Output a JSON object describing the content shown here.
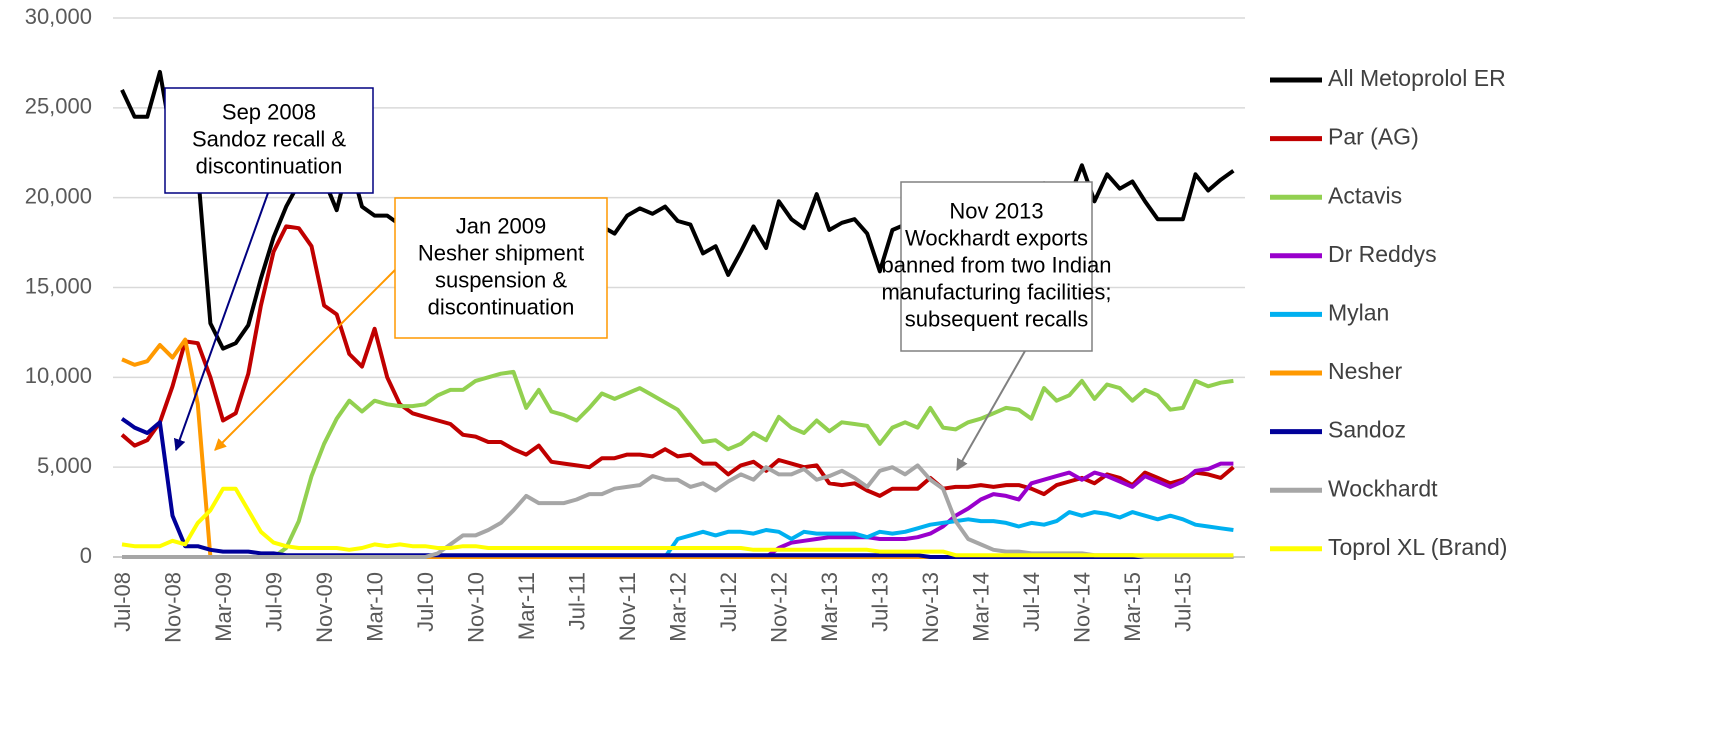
{
  "chart_data": {
    "type": "line",
    "categories": [
      "Jul-08",
      null,
      null,
      null,
      "Nov-08",
      null,
      null,
      null,
      "Mar-09",
      null,
      null,
      null,
      "Jul-09",
      null,
      null,
      null,
      "Nov-09",
      null,
      null,
      null,
      "Mar-10",
      null,
      null,
      null,
      "Jul-10",
      null,
      null,
      null,
      "Nov-10",
      null,
      null,
      null,
      "Mar-11",
      null,
      null,
      null,
      "Jul-11",
      null,
      null,
      null,
      "Nov-11",
      null,
      null,
      null,
      "Mar-12",
      null,
      null,
      null,
      "Jul-12",
      null,
      null,
      null,
      "Nov-12",
      null,
      null,
      null,
      "Mar-13",
      null,
      null,
      null,
      "Jul-13",
      null,
      null,
      null,
      "Nov-13",
      null,
      null,
      null,
      "Mar-14",
      null,
      null,
      null,
      "Jul-14",
      null,
      null,
      null,
      "Nov-14",
      null,
      null,
      null,
      "Mar-15",
      null,
      null,
      null,
      "Jul-15",
      null,
      null,
      null,
      null
    ],
    "ylim": [
      0,
      30000
    ],
    "yticks": [
      0,
      {
        "value": 5000,
        "label": "5,000"
      },
      {
        "value": 10000,
        "label": "10,000"
      },
      {
        "value": 15000,
        "label": "15,000"
      },
      {
        "value": 20000,
        "label": "20,000"
      },
      {
        "value": 25000,
        "label": "25,000"
      },
      {
        "value": 30000,
        "label": "30,000"
      }
    ],
    "grid": true,
    "legend": "right",
    "series": [
      {
        "name": "All Metoprolol ER",
        "color": "#000000",
        "values": [
          26000,
          24500,
          24500,
          27000,
          23000,
          22000,
          21500,
          13000,
          11600,
          11900,
          12900,
          15500,
          17800,
          19500,
          20800,
          21500,
          21000,
          19300,
          22100,
          19500,
          19000,
          19000,
          18500,
          19000,
          19200,
          18800,
          18500,
          19000,
          19300,
          19000,
          18500,
          18800,
          19200,
          18700,
          18500,
          18000,
          18200,
          18800,
          18400,
          18000,
          19000,
          19400,
          19100,
          19500,
          18700,
          18500,
          16900,
          17300,
          15700,
          17000,
          18400,
          17200,
          19800,
          18800,
          18300,
          20200,
          18200,
          18600,
          18800,
          18000,
          15900,
          18200,
          18500,
          18800,
          19000,
          19300,
          19000,
          18700,
          19500,
          19800,
          20000,
          20300,
          20500,
          20800,
          20600,
          20000,
          21800,
          19800,
          21300,
          20500,
          20900,
          19800,
          18800,
          18800,
          18800,
          21300,
          20400,
          21000,
          21500
        ]
      },
      {
        "name": "Par (AG)",
        "color": "#c00000",
        "values": [
          6800,
          6200,
          6500,
          7500,
          9500,
          12000,
          11900,
          10000,
          7600,
          8000,
          10200,
          14000,
          17000,
          18400,
          18300,
          17300,
          14000,
          13500,
          11300,
          10600,
          12700,
          10000,
          8500,
          8000,
          7800,
          7600,
          7400,
          6800,
          6700,
          6400,
          6400,
          6000,
          5700,
          6200,
          5300,
          5200,
          5100,
          5000,
          5500,
          5500,
          5700,
          5700,
          5600,
          6000,
          5600,
          5700,
          5200,
          5200,
          4600,
          5100,
          5300,
          4800,
          5400,
          5200,
          5000,
          5100,
          4100,
          4000,
          4100,
          3700,
          3400,
          3800,
          3800,
          3800,
          4400,
          3800,
          3900,
          3900,
          4000,
          3900,
          4000,
          4000,
          3800,
          3500,
          4000,
          4200,
          4400,
          4100,
          4600,
          4400,
          4000,
          4700,
          4400,
          4100,
          4300,
          4700,
          4600,
          4400,
          5000
        ]
      },
      {
        "name": "Actavis",
        "color": "#92d050",
        "values": [
          0,
          0,
          0,
          0,
          0,
          0,
          0,
          0,
          0,
          0,
          0,
          0,
          0,
          500,
          2000,
          4500,
          6300,
          7700,
          8700,
          8100,
          8700,
          8500,
          8400,
          8400,
          8500,
          9000,
          9300,
          9300,
          9800,
          10000,
          10200,
          10300,
          8300,
          9300,
          8100,
          7900,
          7600,
          8300,
          9100,
          8800,
          9100,
          9400,
          9000,
          8600,
          8200,
          7300,
          6400,
          6500,
          6000,
          6300,
          6900,
          6500,
          7800,
          7200,
          6900,
          7600,
          7000,
          7500,
          7400,
          7300,
          6300,
          7200,
          7500,
          7200,
          8300,
          7200,
          7100,
          7500,
          7700,
          8000,
          8300,
          8200,
          7700,
          9400,
          8700,
          9000,
          9800,
          8800,
          9600,
          9400,
          8700,
          9300,
          9000,
          8200,
          8300,
          9800,
          9500,
          9700,
          9800
        ]
      },
      {
        "name": "Dr Reddys",
        "color": "#9900cc",
        "values": [
          0,
          0,
          0,
          0,
          0,
          0,
          0,
          0,
          0,
          0,
          0,
          0,
          0,
          0,
          0,
          0,
          0,
          0,
          0,
          0,
          0,
          0,
          0,
          0,
          0,
          0,
          0,
          0,
          0,
          0,
          0,
          0,
          0,
          0,
          0,
          0,
          0,
          0,
          0,
          0,
          0,
          0,
          0,
          0,
          0,
          0,
          0,
          0,
          0,
          0,
          0,
          0,
          500,
          800,
          900,
          1000,
          1100,
          1100,
          1100,
          1100,
          1000,
          1000,
          1000,
          1100,
          1300,
          1700,
          2300,
          2700,
          3200,
          3500,
          3400,
          3200,
          4100,
          4300,
          4500,
          4700,
          4300,
          4700,
          4500,
          4200,
          3900,
          4500,
          4200,
          3900,
          4200,
          4800,
          4900,
          5200,
          5200
        ]
      },
      {
        "name": "Mylan",
        "color": "#00b0f0",
        "values": [
          0,
          0,
          0,
          0,
          0,
          0,
          0,
          0,
          0,
          0,
          0,
          0,
          0,
          0,
          0,
          0,
          0,
          0,
          0,
          0,
          0,
          0,
          0,
          0,
          0,
          0,
          0,
          0,
          0,
          0,
          0,
          0,
          0,
          0,
          0,
          0,
          0,
          0,
          0,
          0,
          0,
          0,
          0,
          0,
          1000,
          1200,
          1400,
          1200,
          1400,
          1400,
          1300,
          1500,
          1400,
          1000,
          1400,
          1300,
          1300,
          1300,
          1300,
          1100,
          1400,
          1300,
          1400,
          1600,
          1800,
          1900,
          2000,
          2100,
          2000,
          2000,
          1900,
          1700,
          1900,
          1800,
          2000,
          2500,
          2300,
          2500,
          2400,
          2200,
          2500,
          2300,
          2100,
          2300,
          2100,
          1800,
          1700,
          1600,
          1500
        ]
      },
      {
        "name": "Nesher",
        "color": "#ff9900",
        "values": [
          11000,
          10700,
          10900,
          11800,
          11100,
          12100,
          8500,
          0,
          0,
          0,
          0,
          0,
          0,
          0,
          0,
          0,
          0,
          0,
          0,
          0,
          0,
          0,
          0,
          0,
          0,
          0,
          0,
          0,
          0,
          0,
          0,
          0,
          0,
          0,
          0,
          0,
          0,
          0,
          0,
          0,
          0,
          0,
          0,
          0,
          0,
          0,
          0,
          0,
          0,
          0,
          0,
          0,
          0,
          0,
          0,
          0,
          0,
          0,
          0,
          0,
          0,
          0,
          0,
          0,
          0,
          0,
          0,
          0,
          0,
          0,
          0,
          0,
          0,
          0,
          0,
          0,
          0,
          0,
          0,
          0,
          0,
          0,
          0,
          0,
          0,
          0,
          0,
          0,
          0
        ]
      },
      {
        "name": "Sandoz",
        "color": "#000099",
        "values": [
          7700,
          7200,
          6900,
          7500,
          2300,
          600,
          600,
          400,
          300,
          300,
          300,
          200,
          200,
          100,
          100,
          100,
          100,
          100,
          100,
          100,
          100,
          100,
          100,
          100,
          100,
          100,
          100,
          100,
          100,
          100,
          100,
          100,
          100,
          100,
          100,
          100,
          100,
          100,
          100,
          100,
          100,
          100,
          100,
          100,
          100,
          100,
          100,
          100,
          100,
          100,
          100,
          100,
          100,
          100,
          100,
          100,
          100,
          100,
          100,
          100,
          100,
          100,
          100,
          100,
          0,
          0,
          0,
          0,
          0,
          0,
          0,
          0,
          0,
          0,
          0,
          0,
          0,
          0,
          0,
          0,
          0,
          0,
          0,
          0,
          0,
          0,
          0,
          0,
          0
        ]
      },
      {
        "name": "Wockhardt",
        "color": "#a6a6a6",
        "values": [
          0,
          0,
          0,
          0,
          0,
          0,
          0,
          0,
          0,
          0,
          0,
          0,
          0,
          0,
          0,
          0,
          0,
          0,
          0,
          0,
          0,
          0,
          0,
          0,
          0,
          200,
          700,
          1200,
          1200,
          1500,
          1900,
          2600,
          3400,
          3000,
          3000,
          3000,
          3200,
          3500,
          3500,
          3800,
          3900,
          4000,
          4500,
          4300,
          4300,
          3900,
          4100,
          3700,
          4200,
          4600,
          4300,
          5000,
          4600,
          4600,
          4900,
          4300,
          4500,
          4800,
          4400,
          3900,
          4800,
          5000,
          4600,
          5100,
          4300,
          3800,
          2000,
          1000,
          700,
          400,
          300,
          300,
          200,
          200,
          200,
          200,
          200,
          100,
          100,
          100,
          100,
          0,
          0,
          0,
          0,
          0,
          0,
          0,
          0
        ]
      },
      {
        "name": "Toprol XL (Brand)",
        "color": "#ffff00",
        "values": [
          700,
          600,
          600,
          600,
          900,
          700,
          1900,
          2600,
          3800,
          3800,
          2600,
          1400,
          800,
          600,
          500,
          500,
          500,
          500,
          400,
          500,
          700,
          600,
          700,
          600,
          600,
          500,
          500,
          600,
          600,
          500,
          500,
          500,
          500,
          500,
          500,
          500,
          500,
          500,
          500,
          500,
          500,
          500,
          500,
          500,
          500,
          500,
          500,
          500,
          500,
          500,
          400,
          400,
          400,
          400,
          400,
          400,
          400,
          400,
          400,
          400,
          300,
          300,
          300,
          300,
          300,
          300,
          100,
          100,
          100,
          100,
          100,
          100,
          100,
          100,
          100,
          100,
          100,
          100,
          100,
          100,
          100,
          100,
          100,
          100,
          100,
          100,
          100,
          100,
          100
        ]
      }
    ],
    "annotations": [
      {
        "lines": [
          "Sep 2008",
          "Sandoz recall &",
          "discontinuation"
        ],
        "color": "#000080"
      },
      {
        "lines": [
          "Jan 2009",
          "Nesher shipment",
          "suspension &",
          "discontinuation"
        ],
        "color": "#ff9900"
      },
      {
        "lines": [
          "Nov 2013",
          "Wockhardt exports",
          "banned from two Indian",
          "manufacturing facilities;",
          "subsequent recalls"
        ],
        "color": "#808080"
      }
    ]
  }
}
